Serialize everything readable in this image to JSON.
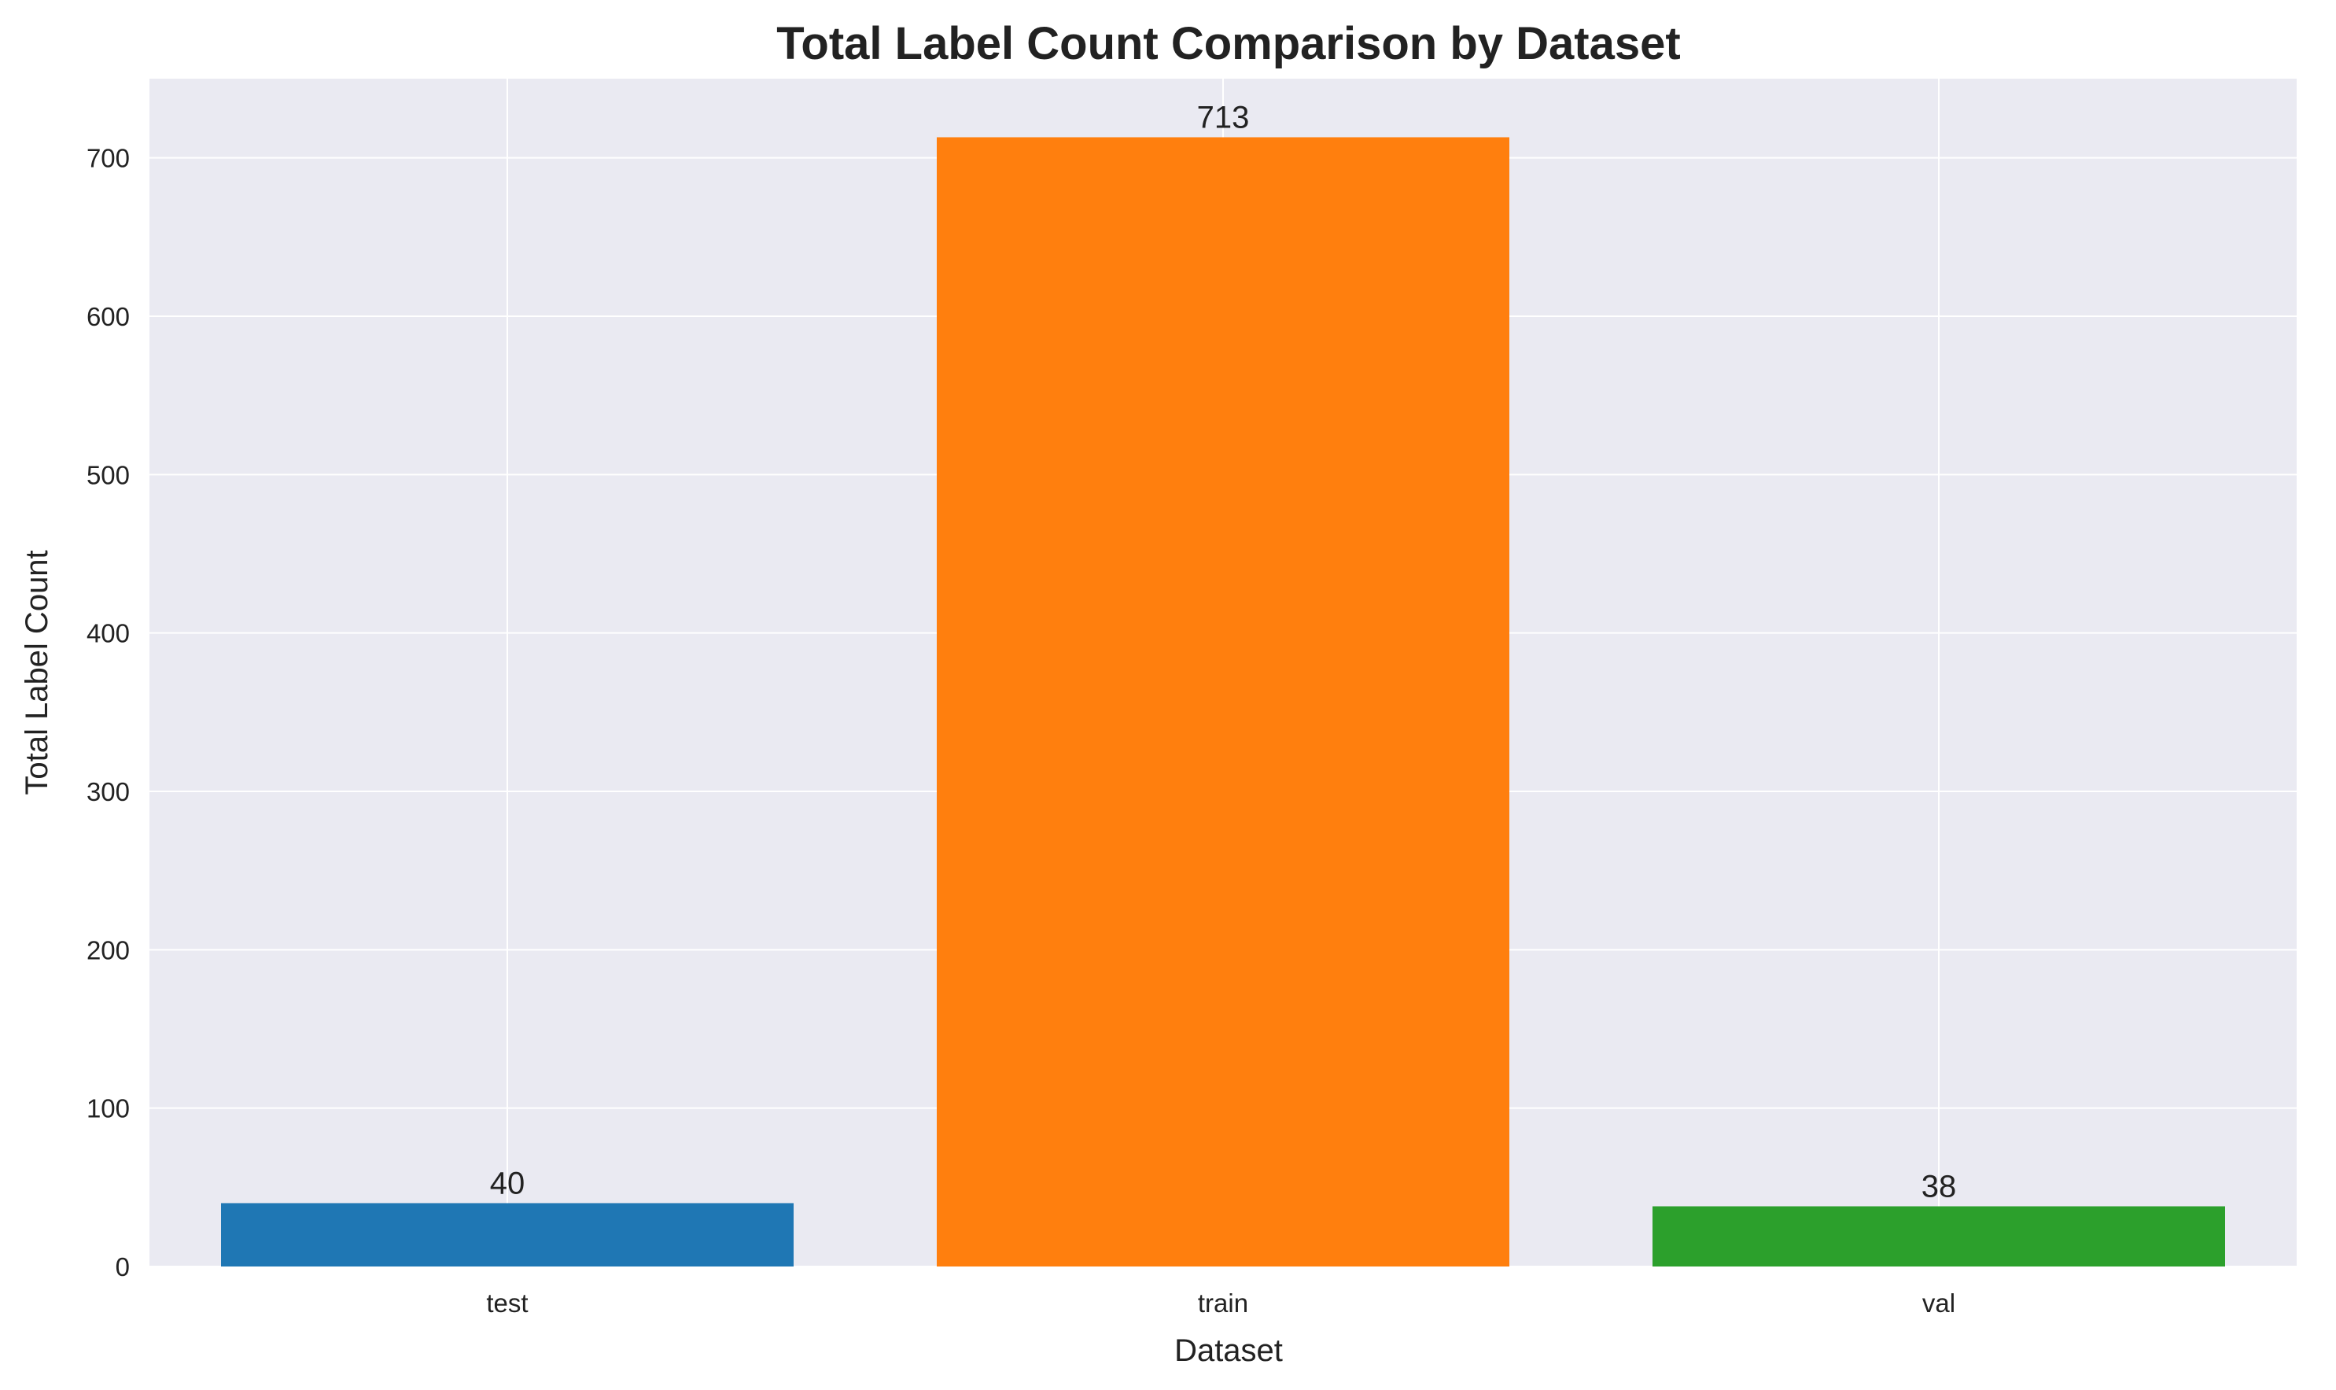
{
  "chart_data": {
    "type": "bar",
    "title": "Total Label Count Comparison by Dataset",
    "xlabel": "Dataset",
    "ylabel": "Total Label Count",
    "categories": [
      "test",
      "train",
      "val"
    ],
    "values": [
      40,
      713,
      38
    ],
    "colors": [
      "#1f77b4",
      "#ff7f0e",
      "#2ca02c"
    ],
    "ylim": [
      0,
      750
    ],
    "yticks": [
      0,
      100,
      200,
      300,
      400,
      500,
      600,
      700
    ],
    "grid": true,
    "background": "#eaeaf2"
  }
}
